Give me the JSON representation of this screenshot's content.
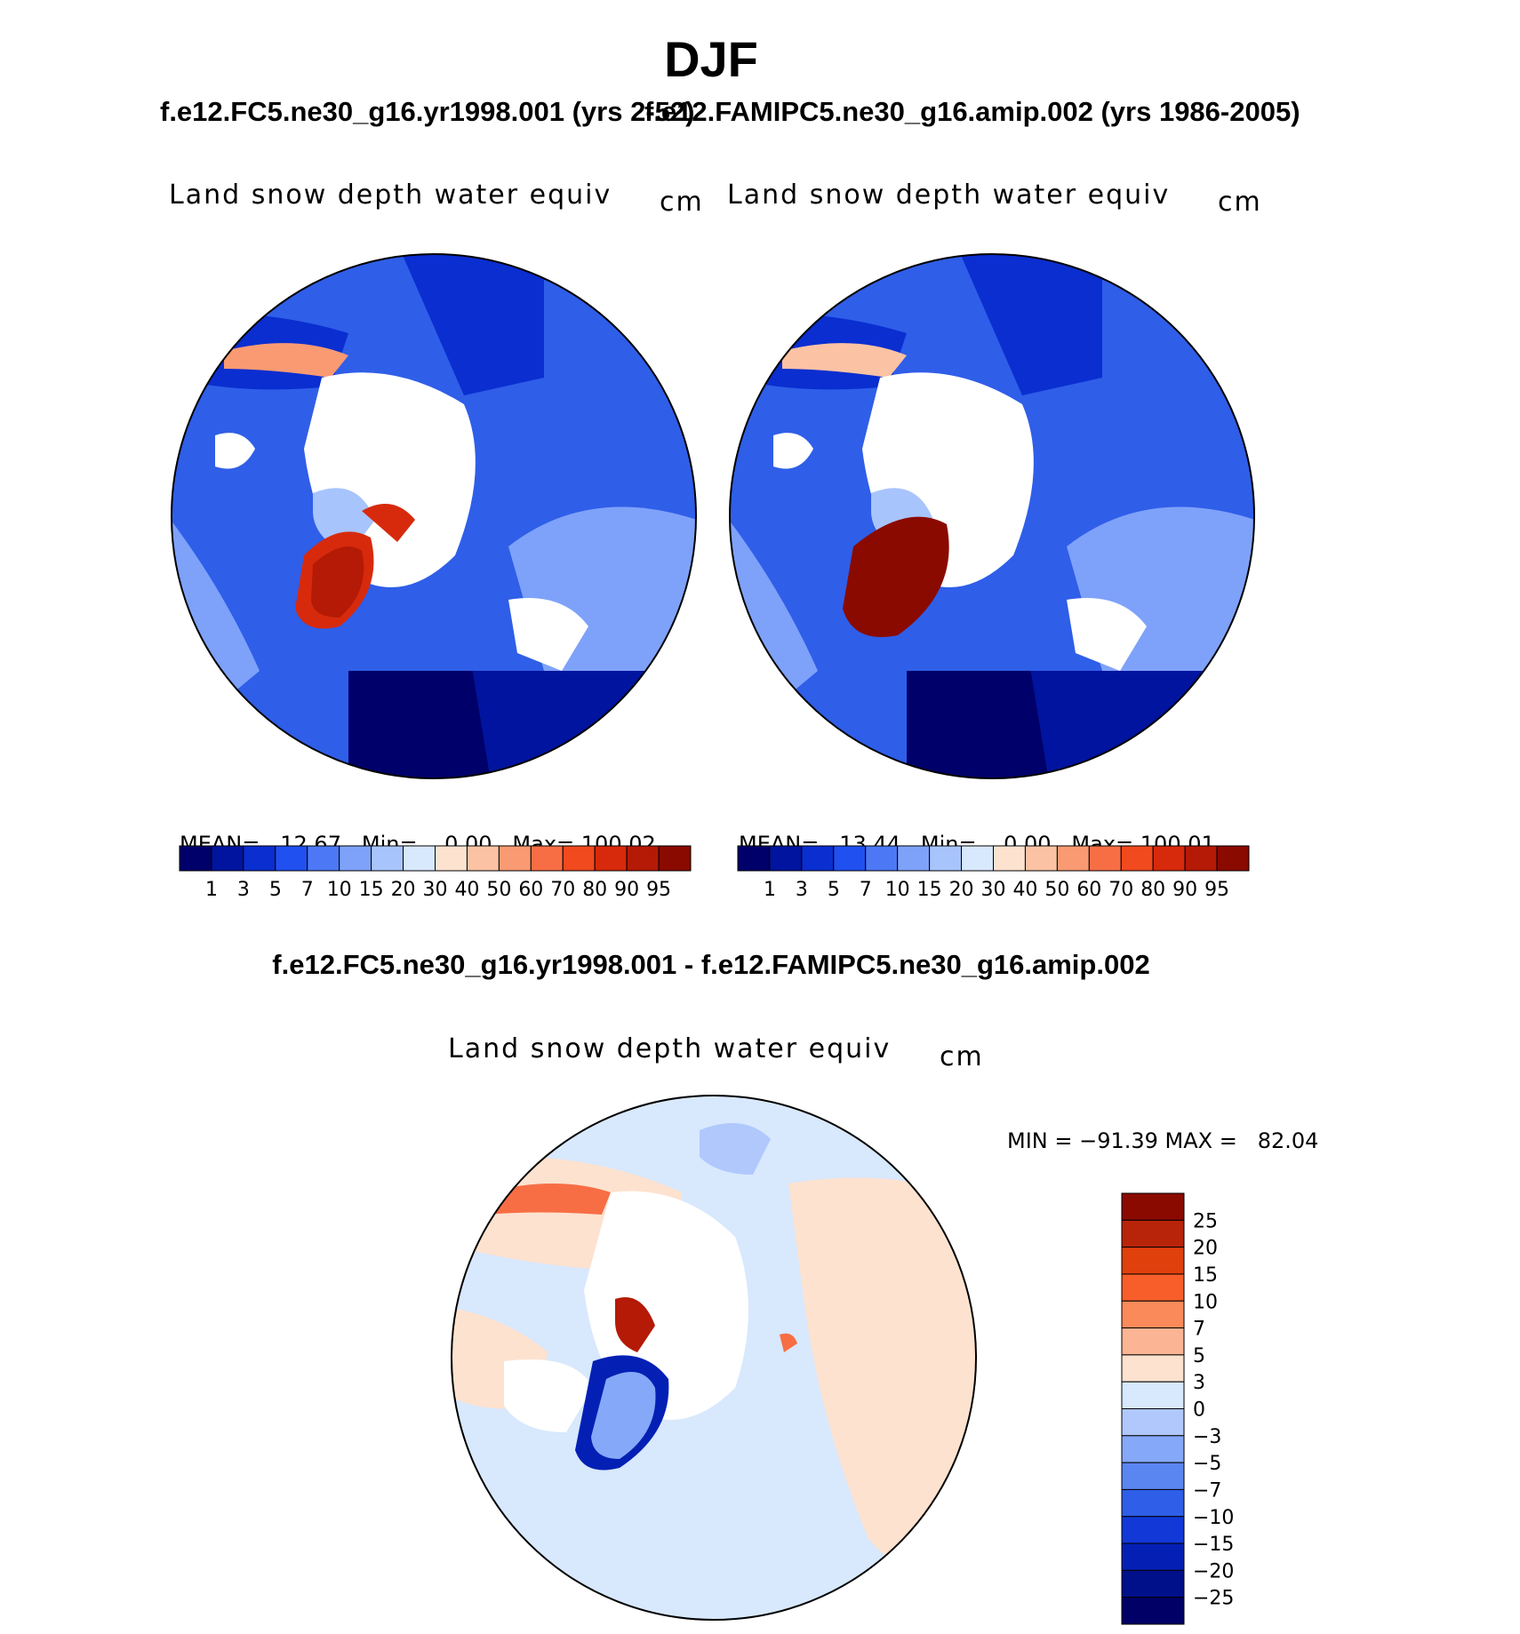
{
  "title": "DJF",
  "panel_left": {
    "case": "f.e12.FC5.ne30_g16.yr1998.001 (yrs 2-52)",
    "variable": "Land snow depth water equiv",
    "units": "cm",
    "mean_label": "MEAN=",
    "mean": "12.67",
    "min_label": "Min=",
    "min": "0.00",
    "max_label": "Max=",
    "max": "100.02"
  },
  "panel_right": {
    "case": "f.e12.FAMIPC5.ne30_g16.amip.002 (yrs 1986-2005)",
    "variable": "Land snow depth water equiv",
    "units": "cm",
    "mean_label": "MEAN=",
    "mean": "13.44",
    "min_label": "Min=",
    "min": "0.00",
    "max_label": "Max=",
    "max": "100.01"
  },
  "abs_colorbar": {
    "levels": [
      "1",
      "3",
      "5",
      "7",
      "10",
      "15",
      "20",
      "30",
      "40",
      "50",
      "60",
      "70",
      "80",
      "90",
      "95"
    ],
    "colors": [
      "#00006b",
      "#0014a0",
      "#0a2ed0",
      "#2050f0",
      "#4d78f5",
      "#7ea2fa",
      "#a8c4fc",
      "#d8e8fd",
      "#fde2cf",
      "#fcc2a4",
      "#fa9a72",
      "#f76e45",
      "#f04a1e",
      "#d72a0c",
      "#b41a06",
      "#8a0a00"
    ]
  },
  "panel_diff": {
    "case": "f.e12.FC5.ne30_g16.yr1998.001 - f.e12.FAMIPC5.ne30_g16.amip.002",
    "variable": "Land snow depth water equiv",
    "units": "cm",
    "minmax": "MIN = −91.39 MAX =   82.04"
  },
  "diff_colorbar": {
    "levels": [
      "25",
      "20",
      "15",
      "10",
      "7",
      "5",
      "3",
      "0",
      "−3",
      "−5",
      "−7",
      "−10",
      "−15",
      "−20",
      "−25"
    ],
    "colors": [
      "#8a0a00",
      "#b8240a",
      "#e0400c",
      "#f75e2a",
      "#fa8a5a",
      "#fcb594",
      "#fde2cf",
      "#d8e8fd",
      "#b0c8fc",
      "#86a8f8",
      "#5a86f2",
      "#2f5ee8",
      "#1238d8",
      "#0420b4",
      "#00108a",
      "#000066"
    ]
  }
}
